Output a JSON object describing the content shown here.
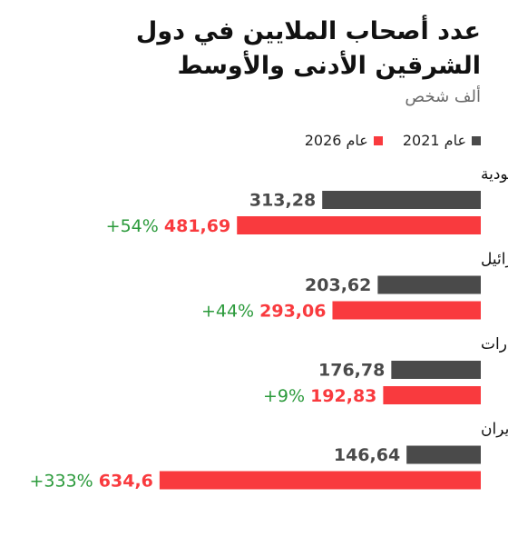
{
  "chart_data": {
    "type": "bar",
    "orientation": "horizontal",
    "title": "عدد أصحاب الملايين في دول الشرقين الأدنى والأوسط",
    "subtitle": "ألف شخص",
    "categories": [
      "السعودية",
      "إسرائيل",
      "الإمارات",
      "إيران"
    ],
    "series": [
      {
        "name": "عام 2021",
        "color": "#4a4a4a",
        "values": [
          313.28,
          203.62,
          176.78,
          146.64
        ],
        "labels": [
          "313,28",
          "203,62",
          "176,78",
          "146,64"
        ]
      },
      {
        "name": "عام 2026",
        "color": "#f93a3e",
        "values": [
          481.69,
          293.06,
          192.83,
          634.6
        ],
        "labels": [
          "481,69",
          "293,06",
          "192,83",
          "634,6"
        ]
      }
    ],
    "changes": [
      "+54%",
      "+44%",
      "+9%",
      "+333%"
    ],
    "change_color": "#2b9a3b",
    "grid": false,
    "legend_position": "top-right"
  }
}
